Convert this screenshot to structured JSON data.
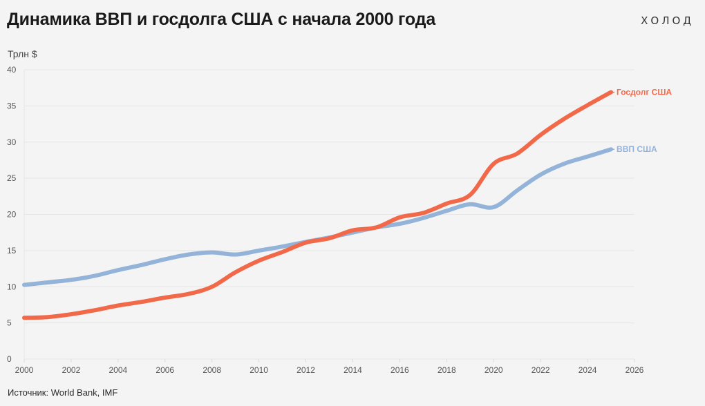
{
  "header": {
    "title": "Динамика ВВП и госдолга США с начала 2000 года",
    "logo": "ХОЛОД"
  },
  "footer": {
    "source": "Источник: World Bank, IMF"
  },
  "chart_data": {
    "type": "line",
    "title": "Динамика ВВП и госдолга США с начала 2000 года",
    "xlabel": "",
    "ylabel": "Трлн $",
    "xlim": [
      2000,
      2026
    ],
    "ylim": [
      0,
      40
    ],
    "x_ticks": [
      2000,
      2002,
      2004,
      2006,
      2008,
      2010,
      2012,
      2014,
      2016,
      2018,
      2020,
      2022,
      2024,
      2026
    ],
    "y_ticks": [
      0,
      5,
      10,
      15,
      20,
      25,
      30,
      35,
      40
    ],
    "grid": true,
    "legend": "inline-right",
    "x": [
      2000,
      2001,
      2002,
      2003,
      2004,
      2005,
      2006,
      2007,
      2008,
      2009,
      2010,
      2011,
      2012,
      2013,
      2014,
      2015,
      2016,
      2017,
      2018,
      2019,
      2020,
      2021,
      2022,
      2023,
      2024,
      2025
    ],
    "series": [
      {
        "name": "ВВП США",
        "color": "#94b3d8",
        "values": [
          10.25,
          10.6,
          10.95,
          11.5,
          12.3,
          13.0,
          13.8,
          14.45,
          14.75,
          14.45,
          15.0,
          15.55,
          16.2,
          16.8,
          17.5,
          18.2,
          18.7,
          19.5,
          20.5,
          21.4,
          21.0,
          23.3,
          25.5,
          27.0,
          28.0,
          29.0
        ]
      },
      {
        "name": "Госдолг США",
        "color": "#f2694a",
        "values": [
          5.7,
          5.8,
          6.2,
          6.75,
          7.4,
          7.9,
          8.5,
          9.0,
          10.0,
          12.0,
          13.6,
          14.8,
          16.1,
          16.7,
          17.8,
          18.2,
          19.6,
          20.2,
          21.5,
          22.7,
          27.0,
          28.4,
          31.0,
          33.2,
          35.1,
          36.9
        ]
      }
    ]
  }
}
